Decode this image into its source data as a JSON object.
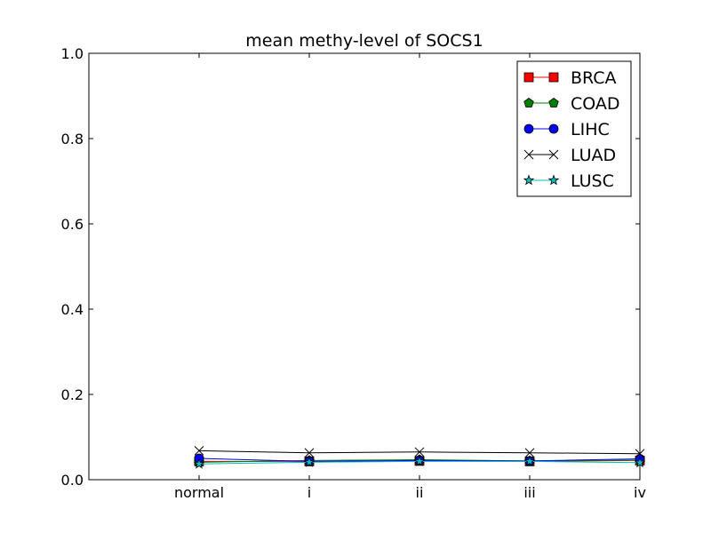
{
  "chart_data": {
    "type": "line",
    "title": "mean methy-level of SOCS1",
    "xlabel": "",
    "ylabel": "",
    "categories": [
      "normal",
      "i",
      "ii",
      "iii",
      "iv"
    ],
    "x_padding_categories": 1,
    "ylim": [
      0.0,
      1.0
    ],
    "yticks": [
      0.0,
      0.2,
      0.4,
      0.6,
      0.8,
      1.0
    ],
    "ytick_labels": [
      "0.0",
      "0.2",
      "0.4",
      "0.6",
      "0.8",
      "1.0"
    ],
    "grid": false,
    "legend_position": "top-right",
    "series": [
      {
        "name": "BRCA",
        "color": "#ff0000",
        "marker": "square",
        "values": [
          0.043,
          0.043,
          0.044,
          0.043,
          0.045
        ]
      },
      {
        "name": "COAD",
        "color": "#008000",
        "marker": "pentagon",
        "values": [
          0.041,
          0.045,
          0.047,
          0.044,
          0.046
        ]
      },
      {
        "name": "LIHC",
        "color": "#0000ff",
        "marker": "circle",
        "values": [
          0.05,
          0.043,
          0.045,
          0.044,
          0.049
        ]
      },
      {
        "name": "LUAD",
        "color": "#000000",
        "marker": "x",
        "values": [
          0.068,
          0.063,
          0.065,
          0.063,
          0.061
        ]
      },
      {
        "name": "LUSC",
        "color": "#00bfbf",
        "marker": "star",
        "values": [
          0.037,
          0.041,
          0.043,
          0.043,
          0.04
        ]
      }
    ]
  }
}
